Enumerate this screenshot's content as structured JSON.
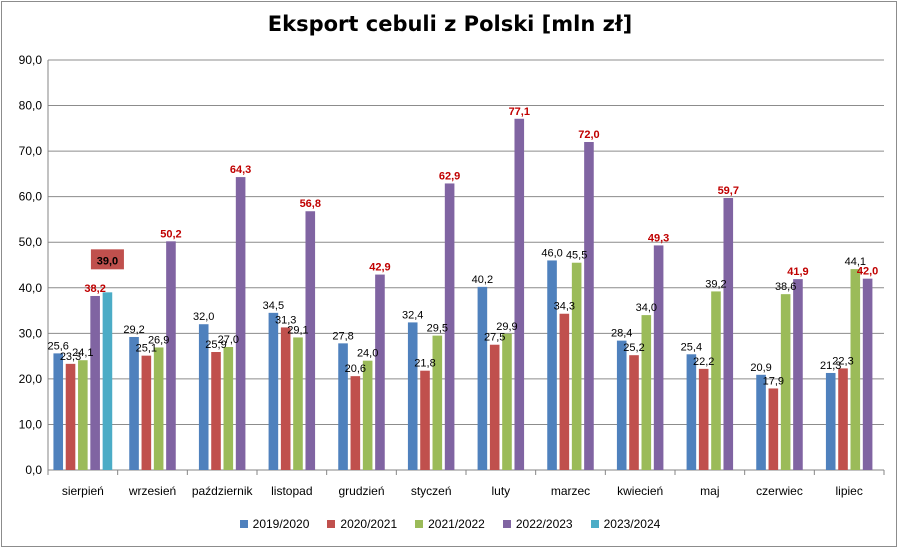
{
  "chart_data": {
    "type": "bar",
    "title": "Eksport cebuli z Polski [mln zł]",
    "categories": [
      "sierpień",
      "wrzesień",
      "październik",
      "listopad",
      "grudzień",
      "styczeń",
      "luty",
      "marzec",
      "kwiecień",
      "maj",
      "czerwiec",
      "lipiec"
    ],
    "series": [
      {
        "name": "2019/2020",
        "color": "#4f81bd",
        "values": [
          25.6,
          29.2,
          32.0,
          34.5,
          27.8,
          32.4,
          40.2,
          46.0,
          28.4,
          25.4,
          20.9,
          21.3
        ],
        "labels": [
          "25,6",
          "29,2",
          "32,0",
          "34,5",
          "27,8",
          "32,4",
          "40,2",
          "46,0",
          "28,4",
          "25,4",
          "20,9",
          "21,3"
        ]
      },
      {
        "name": "2020/2021",
        "color": "#c0504d",
        "values": [
          23.3,
          25.1,
          25.9,
          31.3,
          20.6,
          21.8,
          27.5,
          34.3,
          25.2,
          22.2,
          17.9,
          22.3
        ],
        "labels": [
          "23,3",
          "25,1",
          "25,9",
          "31,3",
          "20,6",
          "21,8",
          "27,5",
          "34,3",
          "25,2",
          "22,2",
          "17,9",
          "22,3"
        ]
      },
      {
        "name": "2021/2022",
        "color": "#9bbb59",
        "values": [
          24.1,
          26.9,
          27.0,
          29.1,
          24.0,
          29.5,
          29.9,
          45.5,
          34.0,
          39.2,
          38.6,
          44.1
        ],
        "labels": [
          "24,1",
          "26,9",
          "27,0",
          "29,1",
          "24,0",
          "29,5",
          "29,9",
          "45,5",
          "34,0",
          "39,2",
          "38,6",
          "44,1"
        ]
      },
      {
        "name": "2022/2023",
        "color": "#8064a2",
        "values": [
          38.2,
          50.2,
          64.3,
          56.8,
          42.9,
          62.9,
          77.1,
          72.0,
          49.3,
          59.7,
          41.9,
          42.0
        ],
        "labels": [
          "38,2",
          "50,2",
          "64,3",
          "56,8",
          "42,9",
          "62,9",
          "77,1",
          "72,0",
          "49,3",
          "59,7",
          "41,9",
          "42,0"
        ],
        "label_color": "#c00000"
      },
      {
        "name": "2023/2024",
        "color": "#4bacc6",
        "values": [
          39.0,
          null,
          null,
          null,
          null,
          null,
          null,
          null,
          null,
          null,
          null,
          null
        ],
        "labels": [
          "39,0",
          "",
          "",
          "",
          "",
          "",
          "",
          "",
          "",
          "",
          "",
          ""
        ],
        "label_box_color": "#c0504d"
      }
    ],
    "yticks": [
      "0,0",
      "10,0",
      "20,0",
      "30,0",
      "40,0",
      "50,0",
      "60,0",
      "70,0",
      "80,0",
      "90,0"
    ],
    "ylim": [
      0,
      90
    ],
    "grid": true,
    "legend_position": "bottom"
  }
}
